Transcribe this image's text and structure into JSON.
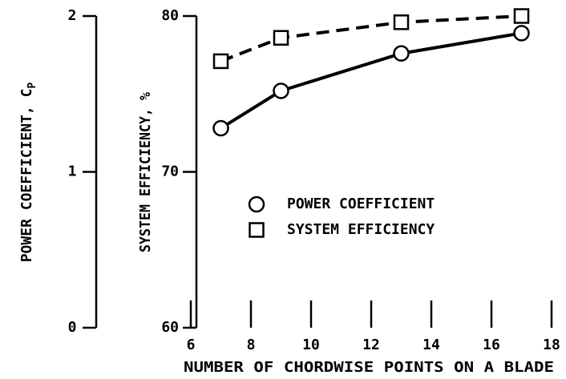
{
  "chart_data": {
    "type": "line",
    "xlabel": "NUMBER OF CHORDWISE POINTS ON A BLADE",
    "ylabel": "SYSTEM EFFICIENCY, %",
    "y2label": "POWER COEFFICIENT, C",
    "y2label_subscript": "P",
    "x": [
      7,
      9,
      13,
      17
    ],
    "xlim": [
      6,
      18
    ],
    "xticks": [
      6,
      8,
      10,
      12,
      14,
      16,
      18
    ],
    "ylim": [
      60,
      80
    ],
    "yticks": [
      60,
      70,
      80
    ],
    "y2lim": [
      0,
      2
    ],
    "y2ticks": [
      0,
      1,
      2
    ],
    "legend": "center",
    "series": [
      {
        "name": "POWER COEFFICIENT",
        "color": "#000000",
        "marker": "circle",
        "dashed": false,
        "axis": "y2",
        "values": [
          1.28,
          1.52,
          1.76,
          1.89
        ]
      },
      {
        "name": "SYSTEM EFFICIENCY",
        "color": "#000000",
        "marker": "square",
        "dashed": true,
        "values": [
          77.1,
          78.6,
          79.6,
          80.0
        ]
      }
    ]
  }
}
